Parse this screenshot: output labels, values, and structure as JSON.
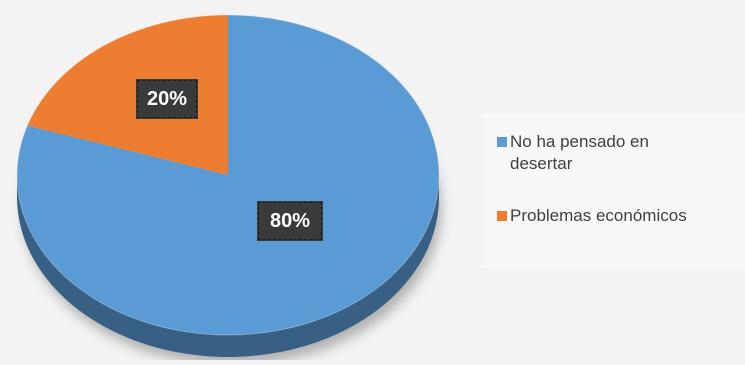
{
  "chart_data": {
    "type": "pie",
    "title": "",
    "categories": [
      "No ha pensado en desertar",
      "Problemas económicos"
    ],
    "values": [
      80,
      20
    ],
    "data_labels": [
      "80%",
      "20%"
    ],
    "colors": [
      "#5b9bd5",
      "#ed7d31"
    ],
    "three_d": true,
    "legend_position": "right"
  },
  "legend": {
    "items": [
      {
        "label": "No ha pensado en\ndesertar",
        "color": "#5b9bd5"
      },
      {
        "label": "Problemas económicos",
        "color": "#ed7d31"
      }
    ]
  }
}
